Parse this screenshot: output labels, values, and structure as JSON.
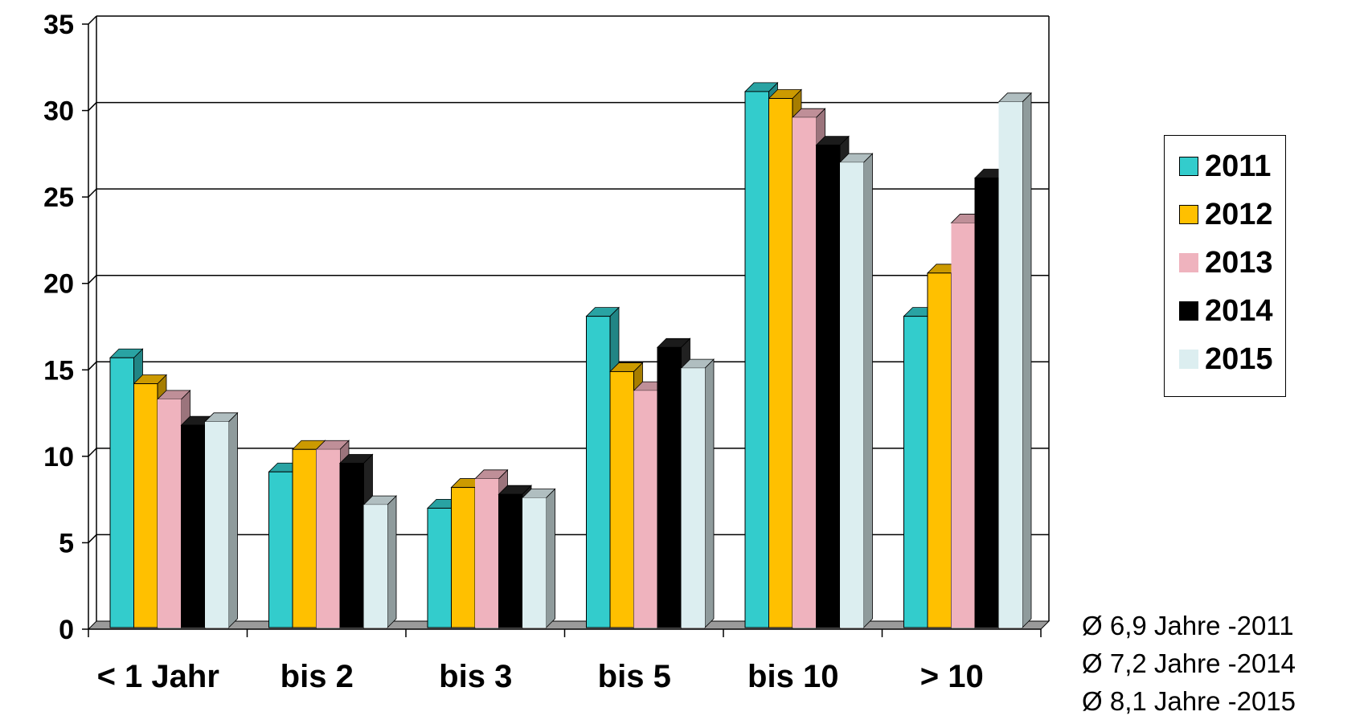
{
  "chart_data": {
    "type": "bar",
    "title": "",
    "xlabel": "",
    "ylabel": "",
    "ylim": [
      0,
      35
    ],
    "yticks": [
      "0",
      "5",
      "10",
      "15",
      "20",
      "25",
      "30",
      "35"
    ],
    "grid": true,
    "legend_position": "right",
    "categories": [
      "< 1 Jahr",
      "bis 2",
      "bis 3",
      "bis 5",
      "bis 10",
      "> 10"
    ],
    "series": [
      {
        "name": "2011",
        "color": "#33CCCC",
        "values": [
          15.7,
          9.1,
          7.0,
          18.1,
          31.1,
          18.1
        ]
      },
      {
        "name": "2012",
        "color": "#FFC000",
        "values": [
          14.2,
          10.4,
          8.2,
          14.9,
          30.7,
          20.6
        ]
      },
      {
        "name": "2013",
        "color": "#EFB3BE",
        "values": [
          13.3,
          10.4,
          8.7,
          13.8,
          29.6,
          23.5
        ]
      },
      {
        "name": "2014",
        "color": "#000000",
        "values": [
          11.8,
          9.6,
          7.8,
          16.3,
          28.0,
          26.1
        ]
      },
      {
        "name": "2015",
        "color": "#DCEEF0",
        "values": [
          12.0,
          7.2,
          7.6,
          15.1,
          27.0,
          30.5
        ]
      }
    ]
  },
  "notes": [
    "Ø 6,9 Jahre -2011",
    "Ø 7,2 Jahre -2014",
    "Ø 8,1 Jahre -2015"
  ]
}
